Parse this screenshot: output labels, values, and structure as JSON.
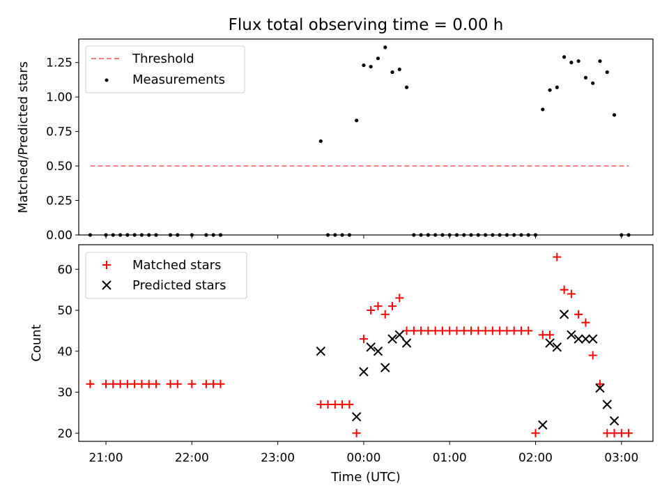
{
  "chart_data": [
    {
      "type": "scatter",
      "title": "Flux total observing time = 0.00 h",
      "xlabel": "",
      "ylabel": "Matched/Predicted stars",
      "xlim": [
        "20:41",
        "03:22"
      ],
      "ylim": [
        0,
        1.42
      ],
      "yticks": [
        0.0,
        0.25,
        0.5,
        0.75,
        1.0,
        1.25
      ],
      "ytick_labels": [
        "0.00",
        "0.25",
        "0.50",
        "0.75",
        "1.00",
        "1.25"
      ],
      "xticks": [
        "21:00",
        "22:00",
        "23:00",
        "00:00",
        "01:00",
        "02:00",
        "03:00"
      ],
      "xtick_labels_visible": false,
      "legend": {
        "placement": "top-left",
        "entries": [
          "Threshold",
          "Measurements"
        ]
      },
      "series": [
        {
          "name": "Threshold",
          "kind": "line",
          "style": "dashed",
          "color": "#ff7f7f",
          "x": [
            "20:49",
            "03:05"
          ],
          "y": [
            0.5,
            0.5
          ]
        },
        {
          "name": "Measurements",
          "kind": "scatter",
          "marker": "dot",
          "color": "#000000",
          "x": [
            "20:49",
            "21:00",
            "21:05",
            "21:10",
            "21:15",
            "21:20",
            "21:25",
            "21:30",
            "21:35",
            "21:45",
            "21:50",
            "22:00",
            "22:10",
            "22:15",
            "22:20",
            "23:30",
            "23:35",
            "23:40",
            "23:45",
            "23:50",
            "23:55",
            "00:00",
            "00:05",
            "00:10",
            "00:15",
            "00:20",
            "00:25",
            "00:30",
            "00:35",
            "00:40",
            "00:45",
            "00:50",
            "00:55",
            "01:00",
            "01:05",
            "01:10",
            "01:15",
            "01:20",
            "01:25",
            "01:30",
            "01:35",
            "01:40",
            "01:45",
            "01:50",
            "01:55",
            "02:00",
            "02:05",
            "02:10",
            "02:15",
            "02:20",
            "02:25",
            "02:30",
            "02:35",
            "02:40",
            "02:45",
            "02:50",
            "02:55",
            "03:00",
            "03:05"
          ],
          "y": [
            0,
            0,
            0,
            0,
            0,
            0,
            0,
            0,
            0,
            0,
            0,
            0,
            0,
            0,
            0,
            0.68,
            0,
            0,
            0,
            0,
            0.83,
            1.23,
            1.22,
            1.28,
            1.36,
            1.18,
            1.2,
            1.07,
            0,
            0,
            0,
            0,
            0,
            0,
            0,
            0,
            0,
            0,
            0,
            0,
            0,
            0,
            0,
            0,
            0,
            0,
            0.91,
            1.05,
            1.07,
            1.29,
            1.25,
            1.26,
            1.14,
            1.1,
            1.26,
            1.18,
            0.87,
            0,
            0
          ]
        }
      ]
    },
    {
      "type": "scatter",
      "title": "",
      "xlabel": "Time (UTC)",
      "ylabel": "Count",
      "xlim": [
        "20:41",
        "03:22"
      ],
      "ylim": [
        18,
        66
      ],
      "yticks": [
        20,
        30,
        40,
        50,
        60
      ],
      "xticks": [
        "21:00",
        "22:00",
        "23:00",
        "00:00",
        "01:00",
        "02:00",
        "03:00"
      ],
      "legend": {
        "placement": "top-left",
        "entries": [
          "Matched stars",
          "Predicted stars"
        ]
      },
      "series": [
        {
          "name": "Matched stars",
          "marker": "plus",
          "color": "#ff0000",
          "x": [
            "20:49",
            "21:00",
            "21:05",
            "21:10",
            "21:15",
            "21:20",
            "21:25",
            "21:30",
            "21:35",
            "21:45",
            "21:50",
            "22:00",
            "22:10",
            "22:15",
            "22:20",
            "23:30",
            "23:35",
            "23:40",
            "23:45",
            "23:50",
            "23:55",
            "00:00",
            "00:05",
            "00:10",
            "00:15",
            "00:20",
            "00:25",
            "00:30",
            "00:35",
            "00:40",
            "00:45",
            "00:50",
            "00:55",
            "01:00",
            "01:05",
            "01:10",
            "01:15",
            "01:20",
            "01:25",
            "01:30",
            "01:35",
            "01:40",
            "01:45",
            "01:50",
            "01:55",
            "02:00",
            "02:05",
            "02:10",
            "02:15",
            "02:20",
            "02:25",
            "02:30",
            "02:35",
            "02:40",
            "02:45",
            "02:50",
            "02:55",
            "03:00",
            "03:05"
          ],
          "y": [
            32,
            32,
            32,
            32,
            32,
            32,
            32,
            32,
            32,
            32,
            32,
            32,
            32,
            32,
            32,
            27,
            27,
            27,
            27,
            27,
            20,
            43,
            50,
            51,
            49,
            51,
            53,
            45,
            45,
            45,
            45,
            45,
            45,
            45,
            45,
            45,
            45,
            45,
            45,
            45,
            45,
            45,
            45,
            45,
            45,
            20,
            44,
            44,
            63,
            55,
            54,
            49,
            47,
            39,
            32,
            20,
            20,
            20,
            20
          ]
        },
        {
          "name": "Predicted stars",
          "marker": "x",
          "color": "#000000",
          "x": [
            "23:30",
            "23:55",
            "00:00",
            "00:05",
            "00:10",
            "00:15",
            "00:20",
            "00:25",
            "00:30",
            "02:05",
            "02:10",
            "02:15",
            "02:20",
            "02:25",
            "02:30",
            "02:35",
            "02:40",
            "02:45",
            "02:50",
            "02:55"
          ],
          "y": [
            40,
            24,
            35,
            41,
            40,
            36,
            43,
            44,
            42,
            22,
            42,
            41,
            49,
            44,
            43,
            43,
            43,
            31,
            27,
            23
          ]
        }
      ]
    }
  ]
}
